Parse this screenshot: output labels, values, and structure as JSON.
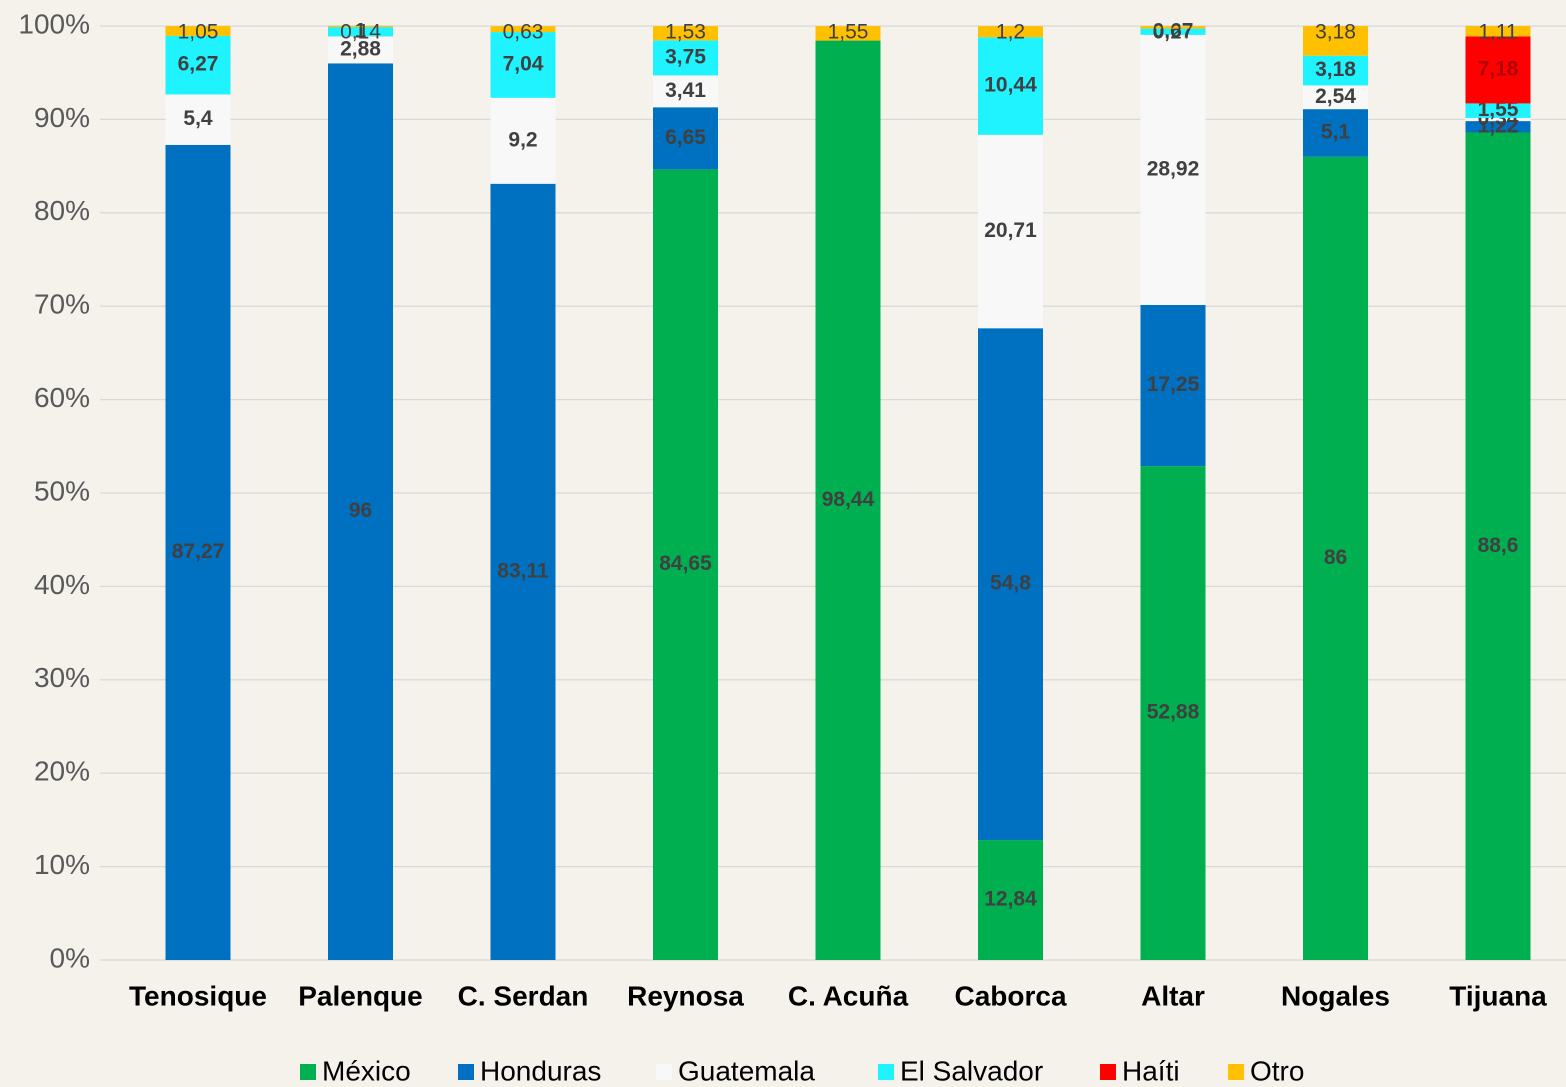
{
  "chart_data": {
    "type": "stacked_bar",
    "categories": [
      "Tenosique",
      "Palenque",
      "C. Serdan",
      "Reynosa",
      "C. Acuña",
      "Caborca",
      "Altar",
      "Nogales",
      "Tijuana"
    ],
    "series": [
      {
        "name": "México",
        "color": "#00b050",
        "values": [
          null,
          null,
          null,
          84.65,
          98.44,
          12.84,
          52.88,
          86,
          88.6
        ],
        "value_labels": [
          null,
          null,
          null,
          "84,65",
          "98,44",
          "12,84",
          "52,88",
          "86",
          "88,6"
        ]
      },
      {
        "name": "Honduras",
        "color": "#0070c0",
        "values": [
          87.27,
          96,
          83.11,
          6.65,
          null,
          54.8,
          17.25,
          5.1,
          1.22
        ],
        "value_labels": [
          "87,27",
          "96",
          "83,11",
          "6,65",
          null,
          "54,8",
          "17,25",
          "5,1",
          "1,22"
        ]
      },
      {
        "name": "Guatemala",
        "color": "#f8f8f8",
        "values": [
          5.4,
          2.88,
          9.2,
          3.41,
          null,
          20.71,
          28.92,
          2.54,
          0.34
        ],
        "value_labels": [
          "5,4",
          "2,88",
          "9,2",
          "3,41",
          null,
          "20,71",
          "28,92",
          "2,54",
          "0,34"
        ]
      },
      {
        "name": "El Salvador",
        "color": "#1ff3ff",
        "values": [
          6.27,
          1,
          7.04,
          3.75,
          null,
          10.44,
          0.67,
          3.18,
          1.55
        ],
        "value_labels": [
          "6,27",
          "1",
          "7,04",
          "3,75",
          null,
          "10,44",
          "0,67",
          "3,18",
          "1,55"
        ]
      },
      {
        "name": "Haíti",
        "color": "#ff0000",
        "values": [
          null,
          null,
          null,
          null,
          null,
          null,
          null,
          null,
          7.18
        ],
        "value_labels": [
          null,
          null,
          null,
          null,
          null,
          null,
          null,
          null,
          "7,18"
        ]
      },
      {
        "name": "Otro",
        "color": "#ffc000",
        "values": [
          1.05,
          0.14,
          0.63,
          1.53,
          1.55,
          1.2,
          0.27,
          3.18,
          1.11
        ],
        "value_labels": [
          "1,05",
          "0,14",
          "0,63",
          "1,53",
          "1,55",
          "1,2",
          "0,27",
          "3,18",
          "1,11"
        ]
      }
    ],
    "ylim": [
      0,
      100
    ],
    "yticks": [
      {
        "value": 0,
        "label": "0%"
      },
      {
        "value": 10,
        "label": "10%"
      },
      {
        "value": 20,
        "label": "20%"
      },
      {
        "value": 30,
        "label": "30%"
      },
      {
        "value": 40,
        "label": "40%"
      },
      {
        "value": 50,
        "label": "50%"
      },
      {
        "value": 60,
        "label": "60%"
      },
      {
        "value": 70,
        "label": "70%"
      },
      {
        "value": 80,
        "label": "80%"
      },
      {
        "value": 90,
        "label": "90%"
      },
      {
        "value": 100,
        "label": "100%"
      }
    ],
    "grid": true,
    "legend": "bottom"
  }
}
